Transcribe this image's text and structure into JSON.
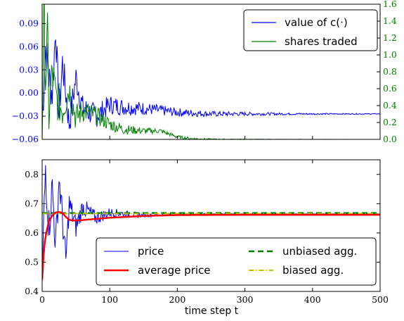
{
  "chart_data": [
    {
      "type": "line",
      "panel": "top",
      "xlim": [
        0,
        500
      ],
      "ylim": [
        -0.06,
        0.115
      ],
      "y2lim": [
        0.0,
        1.6
      ],
      "yticks": [
        "0.09",
        "0.06",
        "0.03",
        "0.00",
        "−0.03",
        "−0.06"
      ],
      "y2ticks": [
        "1.6",
        "1.4",
        "1.2",
        "1.0",
        "0.8",
        "0.6",
        "0.4",
        "0.2",
        "0.0"
      ],
      "left_axis_color": "#0000ff",
      "right_axis_color": "#008000",
      "legend_position": "upper-right",
      "series": [
        {
          "name": "value of c(·)",
          "axis": "left",
          "color": "#0000ff",
          "style": "solid",
          "x": [
            0,
            5,
            10,
            15,
            20,
            25,
            30,
            40,
            50,
            60,
            80,
            100,
            120,
            150,
            200,
            250,
            300,
            400,
            500
          ],
          "y": [
            -0.04,
            0.06,
            0.02,
            0.0,
            0.085,
            -0.03,
            0.04,
            -0.04,
            0.02,
            -0.02,
            -0.03,
            -0.015,
            -0.018,
            -0.02,
            -0.025,
            -0.027,
            -0.027,
            -0.027,
            -0.027
          ]
        },
        {
          "name": "shares traded",
          "axis": "right",
          "color": "#008000",
          "style": "solid",
          "x": [
            0,
            3,
            5,
            8,
            10,
            15,
            20,
            30,
            40,
            50,
            60,
            80,
            100,
            120,
            150,
            175,
            200,
            220,
            250,
            300,
            500
          ],
          "y": [
            0.1,
            1.55,
            0.7,
            1.2,
            0.3,
            0.8,
            0.5,
            0.35,
            0.6,
            0.25,
            0.35,
            0.28,
            0.18,
            0.12,
            0.1,
            0.1,
            0.03,
            0.01,
            0.0,
            0.0,
            0.0
          ]
        }
      ]
    },
    {
      "type": "line",
      "panel": "bottom",
      "xlabel": "time step t",
      "xlim": [
        0,
        500
      ],
      "ylim": [
        0.4,
        0.85
      ],
      "xticks": [
        "0",
        "100",
        "200",
        "300",
        "400",
        "500"
      ],
      "yticks": [
        "0.8",
        "0.7",
        "0.6",
        "0.5",
        "0.4"
      ],
      "legend_position": "lower-right",
      "series": [
        {
          "name": "price",
          "color": "#0000ff",
          "style": "solid",
          "x": [
            0,
            2,
            5,
            8,
            10,
            15,
            20,
            25,
            30,
            35,
            40,
            50,
            60,
            80,
            100,
            150,
            200,
            300,
            500
          ],
          "y": [
            0.44,
            0.6,
            0.83,
            0.7,
            0.62,
            0.76,
            0.55,
            0.79,
            0.65,
            0.5,
            0.7,
            0.62,
            0.69,
            0.65,
            0.67,
            0.66,
            0.665,
            0.665,
            0.665
          ]
        },
        {
          "name": "average price",
          "color": "#ff0000",
          "style": "solid",
          "x": [
            0,
            2,
            4,
            6,
            8,
            10,
            15,
            20,
            25,
            30,
            35,
            40,
            45,
            50,
            60,
            80,
            100,
            150,
            200,
            300,
            400,
            500
          ],
          "y": [
            0.44,
            0.52,
            0.57,
            0.6,
            0.62,
            0.64,
            0.66,
            0.67,
            0.672,
            0.668,
            0.655,
            0.645,
            0.643,
            0.642,
            0.644,
            0.648,
            0.652,
            0.658,
            0.661,
            0.662,
            0.662,
            0.662
          ]
        },
        {
          "name": "unbiased agg.",
          "color": "#008000",
          "style": "dashed",
          "x": [
            0,
            500
          ],
          "y": [
            0.668,
            0.668
          ]
        },
        {
          "name": "biased agg.",
          "color": "#bfbf00",
          "style": "dashdot",
          "x": [
            0,
            500
          ],
          "y": [
            0.666,
            0.666
          ]
        }
      ]
    }
  ]
}
